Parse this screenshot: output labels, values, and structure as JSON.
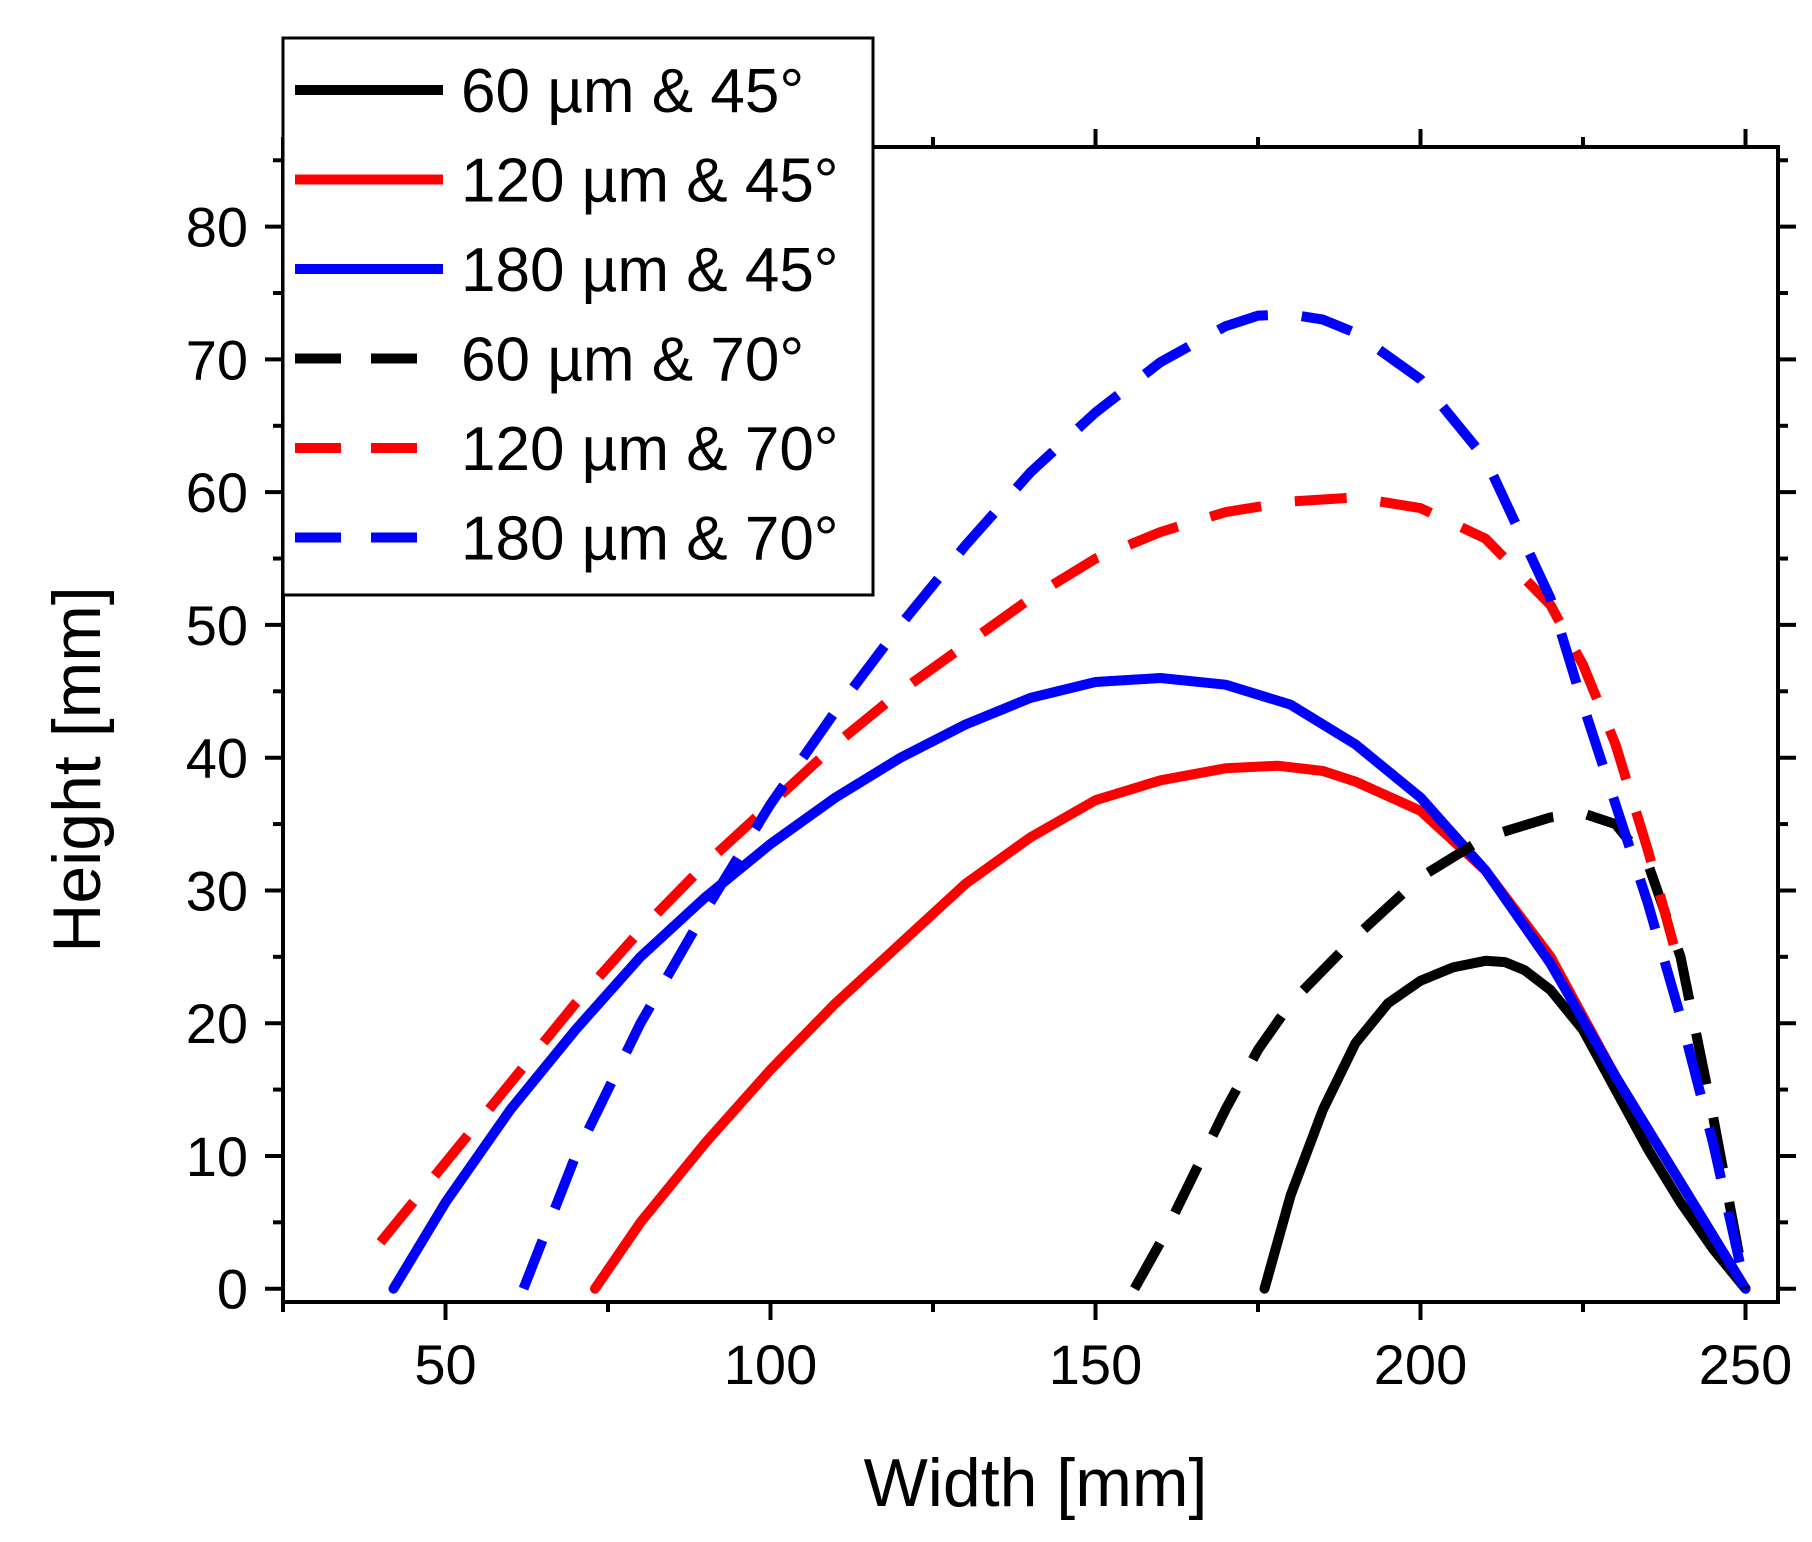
{
  "chart_data": {
    "type": "line",
    "title": "",
    "xlabel": "Width [mm]",
    "ylabel": "Height [mm]",
    "xlim": [
      25,
      255
    ],
    "ylim": [
      -1,
      86
    ],
    "xticks": [
      50,
      100,
      150,
      200,
      250
    ],
    "yticks": [
      0,
      10,
      20,
      30,
      40,
      50,
      60,
      70,
      80
    ],
    "x_minor_step": 25,
    "y_minor_step": 5,
    "grid": false,
    "legend_position": "top-left",
    "series": [
      {
        "name": "60 µm & 45°",
        "color": "#000000",
        "dash": "solid",
        "x": [
          176,
          180,
          185,
          190,
          195,
          200,
          205,
          210,
          213,
          216,
          220,
          225,
          230,
          235,
          240,
          245,
          250
        ],
        "y": [
          0,
          7,
          13.5,
          18.5,
          21.5,
          23.2,
          24.2,
          24.7,
          24.6,
          24,
          22.5,
          19.5,
          15,
          10.5,
          6.5,
          3,
          0
        ]
      },
      {
        "name": "120 µm & 45°",
        "color": "#ff0000",
        "dash": "solid",
        "x": [
          73,
          80,
          90,
          100,
          110,
          120,
          130,
          140,
          150,
          160,
          170,
          178,
          185,
          190,
          200,
          210,
          220,
          230,
          240,
          250
        ],
        "y": [
          0,
          5,
          11,
          16.5,
          21.5,
          26,
          30.5,
          34,
          36.8,
          38.3,
          39.2,
          39.4,
          39,
          38.2,
          36,
          31.5,
          25,
          16,
          8,
          0
        ]
      },
      {
        "name": "180 µm & 45°",
        "color": "#0000ff",
        "dash": "solid",
        "x": [
          42,
          50,
          60,
          70,
          80,
          90,
          100,
          110,
          120,
          130,
          140,
          150,
          160,
          170,
          180,
          190,
          200,
          210,
          220,
          230,
          240,
          250
        ],
        "y": [
          0,
          6.5,
          13.5,
          19.5,
          25,
          29.5,
          33.5,
          37,
          40,
          42.5,
          44.5,
          45.7,
          46,
          45.5,
          44,
          41,
          37,
          31.5,
          24.5,
          16,
          8,
          0
        ]
      },
      {
        "name": "60 µm & 70°",
        "color": "#000000",
        "dash": "dashed",
        "x": [
          156,
          160,
          165,
          170,
          175,
          180,
          190,
          200,
          210,
          220,
          225,
          230,
          235,
          240,
          245,
          250
        ],
        "y": [
          0,
          3.5,
          8.5,
          13.5,
          18,
          21.5,
          26.5,
          31,
          34,
          35.5,
          35.8,
          35,
          32,
          25,
          13,
          0
        ]
      },
      {
        "name": "120 µm & 70°",
        "color": "#ff0000",
        "dash": "dashed",
        "x": [
          40,
          50,
          60,
          70,
          80,
          90,
          100,
          110,
          120,
          130,
          140,
          150,
          160,
          170,
          180,
          190,
          200,
          210,
          220,
          225,
          230,
          235,
          240
        ],
        "y": [
          3.5,
          9.5,
          15.5,
          21.5,
          27,
          32,
          36.5,
          41,
          45,
          48.5,
          52,
          55,
          57,
          58.5,
          59.3,
          59.6,
          58.8,
          56.5,
          51.5,
          47,
          41,
          33,
          24
        ]
      },
      {
        "name": "180 µm & 70°",
        "color": "#0000ff",
        "dash": "dashed",
        "x": [
          62,
          70,
          80,
          90,
          100,
          110,
          120,
          130,
          140,
          150,
          160,
          170,
          175,
          180,
          185,
          190,
          200,
          210,
          220,
          225,
          230,
          235,
          240,
          245,
          250
        ],
        "y": [
          0,
          10,
          20,
          28.5,
          36.5,
          43.5,
          50,
          56,
          61.5,
          66,
          69.8,
          72.5,
          73.3,
          73.4,
          73,
          72,
          68.5,
          62.5,
          52,
          44,
          36.5,
          29,
          20.5,
          11,
          0
        ]
      }
    ]
  }
}
